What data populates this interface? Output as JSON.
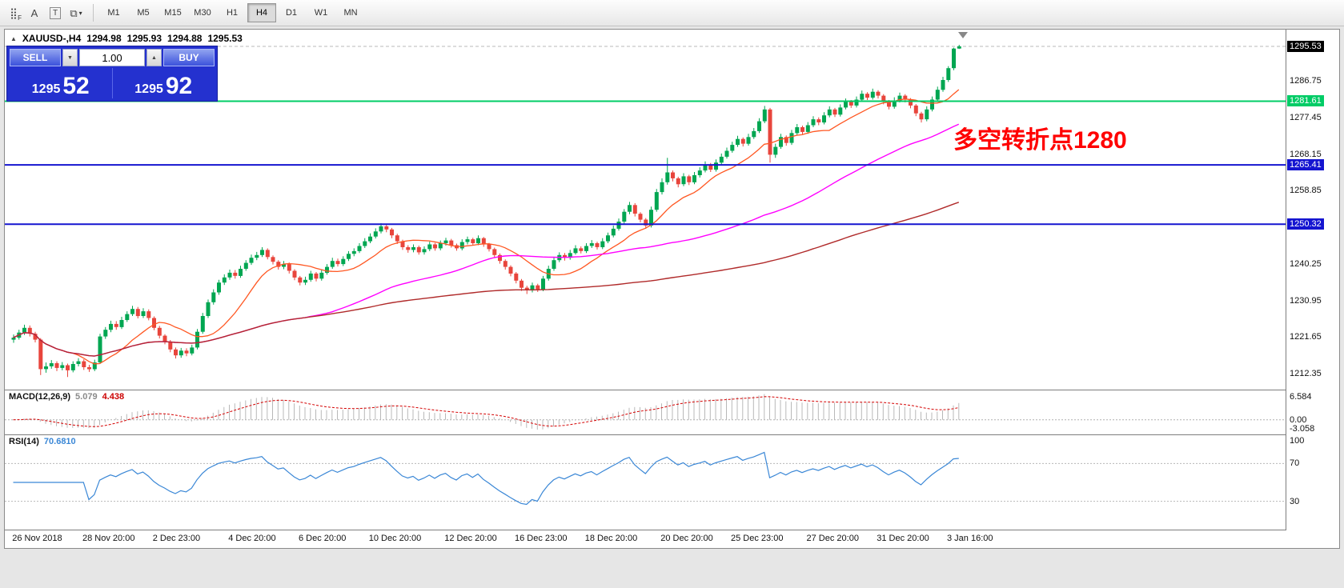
{
  "toolbar": {
    "tools": [
      {
        "name": "indicator-grid-icon",
        "glyph": "⣿",
        "sub": "F"
      },
      {
        "name": "cursor-tool-button",
        "glyph": "A"
      },
      {
        "name": "text-tool-button",
        "glyph": "T",
        "boxed": true
      },
      {
        "name": "shapes-tool-button",
        "glyph": "⧉",
        "caret": "▾"
      }
    ],
    "timeframes": [
      "M1",
      "M5",
      "M15",
      "M30",
      "H1",
      "H4",
      "D1",
      "W1",
      "MN"
    ],
    "active_timeframe": "H4"
  },
  "chart_header": {
    "symbol": "XAUUSD-,H4",
    "open": "1294.98",
    "high": "1295.93",
    "low": "1294.88",
    "close": "1295.53"
  },
  "trade_panel": {
    "sell_label": "SELL",
    "buy_label": "BUY",
    "volume": "1.00",
    "sell_price_base": "1295",
    "sell_price_pips": "52",
    "buy_price_base": "1295",
    "buy_price_pips": "92",
    "decrease_glyph": "▼",
    "increase_glyph": "▲"
  },
  "y_axis": {
    "ticks": [
      1286.75,
      1277.45,
      1268.15,
      1258.85,
      1240.25,
      1230.95,
      1221.65,
      1212.35
    ],
    "current_price": 1295.53
  },
  "chart_data": {
    "type": "candlestick",
    "symbol": "XAUUSD-",
    "timeframe": "H4",
    "title": "XAUUSD-,H4",
    "up_color": "#00a651",
    "down_color": "#e8453c",
    "y_range": [
      1208.3,
      1299.8
    ],
    "current_price": 1295.53,
    "annotation": {
      "text": "多空转折点1280",
      "color": "#ff0000"
    },
    "hlines": [
      {
        "price": 1281.61,
        "color": "#00cc66",
        "label": "1281.61"
      },
      {
        "price": 1265.41,
        "color": "#1515d0",
        "label": "1265.41"
      },
      {
        "price": 1250.32,
        "color": "#1515d0",
        "label": "1250.32"
      }
    ],
    "overlays": [
      {
        "name": "ma-fast",
        "type": "sma",
        "period": 12,
        "color": "#ff5722",
        "width": 1.3
      },
      {
        "name": "ma-mid",
        "type": "sma",
        "period": 55,
        "color": "#ff00ff",
        "width": 1.4
      },
      {
        "name": "ma-slow",
        "type": "sma",
        "period": 140,
        "color": "#b02a2a",
        "width": 1.4
      }
    ],
    "x_labels": [
      {
        "label": "26 Nov 2018",
        "index": 1
      },
      {
        "label": "28 Nov 20:00",
        "index": 14
      },
      {
        "label": "2 Dec 23:00",
        "index": 27
      },
      {
        "label": "4 Dec 20:00",
        "index": 41
      },
      {
        "label": "6 Dec 20:00",
        "index": 54
      },
      {
        "label": "10 Dec 20:00",
        "index": 67
      },
      {
        "label": "12 Dec 20:00",
        "index": 81
      },
      {
        "label": "16 Dec 23:00",
        "index": 94
      },
      {
        "label": "18 Dec 20:00",
        "index": 107
      },
      {
        "label": "20 Dec 20:00",
        "index": 121
      },
      {
        "label": "25 Dec 23:00",
        "index": 134
      },
      {
        "label": "27 Dec 20:00",
        "index": 148
      },
      {
        "label": "31 Dec 20:00",
        "index": 161
      },
      {
        "label": "3 Jan 16:00",
        "index": 174
      }
    ],
    "indicators": [
      {
        "name": "MACD",
        "label": "MACD(12,26,9)",
        "values": [
          "5.079",
          "4.438"
        ],
        "params": [
          12,
          26,
          9
        ],
        "scale": [
          "6.584",
          "0.00",
          "-3.058"
        ],
        "range": [
          -3.6,
          7.2
        ],
        "histogram_color": "#b8b8b8",
        "signal_color": "#d40000"
      },
      {
        "name": "RSI",
        "label": "RSI(14)",
        "value": "70.6810",
        "period": 14,
        "scale": [
          "100",
          "70",
          "30"
        ],
        "range": [
          0,
          100
        ],
        "levels": [
          70,
          30
        ],
        "line_color": "#3a87d6"
      }
    ],
    "candles": [
      [
        1221.0,
        1222.3,
        1220.2,
        1221.5
      ],
      [
        1221.5,
        1223.5,
        1221.0,
        1222.8
      ],
      [
        1222.8,
        1224.8,
        1222.2,
        1224.0
      ],
      [
        1224.0,
        1224.6,
        1221.8,
        1222.5
      ],
      [
        1222.5,
        1223.0,
        1220.3,
        1221.0
      ],
      [
        1221.0,
        1221.4,
        1212.0,
        1213.5
      ],
      [
        1213.5,
        1215.2,
        1212.6,
        1214.2
      ],
      [
        1214.2,
        1215.8,
        1213.6,
        1215.0
      ],
      [
        1215.0,
        1215.5,
        1213.0,
        1213.8
      ],
      [
        1213.8,
        1215.3,
        1213.2,
        1214.5
      ],
      [
        1214.5,
        1214.9,
        1211.5,
        1213.2
      ],
      [
        1213.2,
        1215.5,
        1212.7,
        1214.8
      ],
      [
        1214.8,
        1216.3,
        1214.2,
        1215.5
      ],
      [
        1215.5,
        1216.0,
        1213.3,
        1214.0
      ],
      [
        1214.0,
        1214.6,
        1212.8,
        1213.5
      ],
      [
        1213.5,
        1215.9,
        1213.0,
        1215.2
      ],
      [
        1215.2,
        1222.5,
        1214.8,
        1221.8
      ],
      [
        1221.8,
        1224.2,
        1221.2,
        1223.5
      ],
      [
        1223.5,
        1225.8,
        1222.9,
        1225.0
      ],
      [
        1225.0,
        1225.7,
        1223.5,
        1224.2
      ],
      [
        1224.2,
        1226.8,
        1223.7,
        1226.0
      ],
      [
        1226.0,
        1228.2,
        1225.5,
        1227.5
      ],
      [
        1227.5,
        1229.6,
        1227.0,
        1228.8
      ],
      [
        1228.8,
        1229.3,
        1226.4,
        1227.0
      ],
      [
        1227.0,
        1229.0,
        1226.5,
        1228.2
      ],
      [
        1228.2,
        1228.7,
        1225.9,
        1226.5
      ],
      [
        1226.5,
        1226.9,
        1223.4,
        1224.0
      ],
      [
        1224.0,
        1224.5,
        1221.3,
        1222.0
      ],
      [
        1222.0,
        1222.4,
        1219.8,
        1220.5
      ],
      [
        1220.5,
        1220.9,
        1217.8,
        1218.5
      ],
      [
        1218.5,
        1219.0,
        1216.2,
        1217.0
      ],
      [
        1217.0,
        1218.9,
        1216.4,
        1218.2
      ],
      [
        1218.2,
        1218.8,
        1216.8,
        1217.5
      ],
      [
        1217.5,
        1219.7,
        1217.0,
        1219.0
      ],
      [
        1219.0,
        1223.7,
        1218.5,
        1223.0
      ],
      [
        1223.0,
        1227.8,
        1222.5,
        1227.0
      ],
      [
        1227.0,
        1231.2,
        1226.5,
        1230.5
      ],
      [
        1230.5,
        1233.8,
        1229.9,
        1233.0
      ],
      [
        1233.0,
        1236.2,
        1232.4,
        1235.5
      ],
      [
        1235.5,
        1237.6,
        1234.9,
        1236.8
      ],
      [
        1236.8,
        1238.8,
        1236.2,
        1238.0
      ],
      [
        1238.0,
        1238.7,
        1236.5,
        1237.2
      ],
      [
        1237.2,
        1239.8,
        1236.7,
        1239.0
      ],
      [
        1239.0,
        1241.2,
        1238.5,
        1240.5
      ],
      [
        1240.5,
        1242.6,
        1240.0,
        1241.8
      ],
      [
        1241.8,
        1243.3,
        1241.2,
        1242.5
      ],
      [
        1242.5,
        1244.5,
        1242.0,
        1243.8
      ],
      [
        1243.8,
        1244.2,
        1241.4,
        1242.0
      ],
      [
        1242.0,
        1242.4,
        1240.1,
        1240.8
      ],
      [
        1240.8,
        1241.2,
        1238.8,
        1239.5
      ],
      [
        1239.5,
        1241.0,
        1238.9,
        1240.2
      ],
      [
        1240.2,
        1240.6,
        1237.8,
        1238.5
      ],
      [
        1238.5,
        1238.9,
        1236.1,
        1236.8
      ],
      [
        1236.8,
        1237.2,
        1234.8,
        1235.5
      ],
      [
        1235.5,
        1237.0,
        1234.9,
        1236.2
      ],
      [
        1236.2,
        1238.5,
        1235.7,
        1237.8
      ],
      [
        1237.8,
        1238.2,
        1235.8,
        1236.5
      ],
      [
        1236.5,
        1238.8,
        1236.0,
        1238.0
      ],
      [
        1238.0,
        1240.2,
        1237.5,
        1239.5
      ],
      [
        1239.5,
        1241.8,
        1239.0,
        1241.0
      ],
      [
        1241.0,
        1241.6,
        1239.6,
        1240.2
      ],
      [
        1240.2,
        1242.2,
        1239.7,
        1241.5
      ],
      [
        1241.5,
        1243.5,
        1241.0,
        1242.8
      ],
      [
        1242.8,
        1244.2,
        1242.2,
        1243.5
      ],
      [
        1243.5,
        1245.5,
        1243.0,
        1244.8
      ],
      [
        1244.8,
        1246.8,
        1244.3,
        1246.0
      ],
      [
        1246.0,
        1248.0,
        1245.5,
        1247.2
      ],
      [
        1247.2,
        1249.3,
        1246.7,
        1248.5
      ],
      [
        1248.5,
        1250.6,
        1248.0,
        1249.8
      ],
      [
        1249.8,
        1250.4,
        1248.3,
        1249.0
      ],
      [
        1249.0,
        1249.4,
        1246.8,
        1247.5
      ],
      [
        1247.5,
        1247.9,
        1245.3,
        1246.0
      ],
      [
        1246.0,
        1246.4,
        1243.8,
        1244.5
      ],
      [
        1244.5,
        1245.0,
        1243.1,
        1243.8
      ],
      [
        1243.8,
        1245.2,
        1243.2,
        1244.5
      ],
      [
        1244.5,
        1244.9,
        1242.6,
        1243.2
      ],
      [
        1243.2,
        1244.7,
        1242.6,
        1244.0
      ],
      [
        1244.0,
        1245.9,
        1243.5,
        1245.2
      ],
      [
        1245.2,
        1245.6,
        1243.6,
        1244.2
      ],
      [
        1244.2,
        1246.2,
        1243.7,
        1245.5
      ],
      [
        1245.5,
        1246.9,
        1244.9,
        1246.2
      ],
      [
        1246.2,
        1246.6,
        1244.4,
        1245.0
      ],
      [
        1245.0,
        1245.4,
        1243.6,
        1244.2
      ],
      [
        1244.2,
        1246.5,
        1243.7,
        1245.8
      ],
      [
        1245.8,
        1247.2,
        1245.2,
        1246.5
      ],
      [
        1246.5,
        1246.9,
        1244.9,
        1245.5
      ],
      [
        1245.5,
        1247.5,
        1245.0,
        1246.8
      ],
      [
        1246.8,
        1247.1,
        1244.6,
        1245.2
      ],
      [
        1245.2,
        1245.6,
        1243.4,
        1244.0
      ],
      [
        1244.0,
        1244.4,
        1241.8,
        1242.5
      ],
      [
        1242.5,
        1242.9,
        1240.3,
        1241.0
      ],
      [
        1241.0,
        1241.4,
        1238.8,
        1239.5
      ],
      [
        1239.5,
        1239.9,
        1237.1,
        1237.8
      ],
      [
        1237.8,
        1238.2,
        1235.3,
        1236.0
      ],
      [
        1236.0,
        1236.4,
        1233.4,
        1234.2
      ],
      [
        1234.2,
        1234.7,
        1232.6,
        1233.5
      ],
      [
        1233.5,
        1235.5,
        1233.0,
        1234.8
      ],
      [
        1234.8,
        1235.2,
        1233.1,
        1233.8
      ],
      [
        1233.8,
        1237.2,
        1233.3,
        1236.5
      ],
      [
        1236.5,
        1239.8,
        1236.0,
        1239.0
      ],
      [
        1239.0,
        1242.0,
        1238.5,
        1241.2
      ],
      [
        1241.2,
        1243.2,
        1240.7,
        1242.5
      ],
      [
        1242.5,
        1243.0,
        1241.1,
        1241.8
      ],
      [
        1241.8,
        1243.8,
        1241.3,
        1243.0
      ],
      [
        1243.0,
        1245.0,
        1242.6,
        1244.2
      ],
      [
        1244.2,
        1244.7,
        1242.9,
        1243.5
      ],
      [
        1243.5,
        1245.5,
        1243.0,
        1244.8
      ],
      [
        1244.8,
        1246.3,
        1244.3,
        1245.5
      ],
      [
        1245.5,
        1245.9,
        1243.9,
        1244.5
      ],
      [
        1244.5,
        1246.8,
        1244.0,
        1246.0
      ],
      [
        1246.0,
        1248.2,
        1245.5,
        1247.5
      ],
      [
        1247.5,
        1250.0,
        1247.0,
        1249.2
      ],
      [
        1249.2,
        1251.8,
        1248.7,
        1251.0
      ],
      [
        1251.0,
        1254.2,
        1250.5,
        1253.5
      ],
      [
        1253.5,
        1256.0,
        1252.9,
        1255.2
      ],
      [
        1255.2,
        1255.7,
        1252.3,
        1253.0
      ],
      [
        1253.0,
        1253.4,
        1250.8,
        1251.5
      ],
      [
        1251.5,
        1251.9,
        1249.2,
        1250.0
      ],
      [
        1250.0,
        1254.8,
        1249.5,
        1254.0
      ],
      [
        1254.0,
        1259.3,
        1253.5,
        1258.5
      ],
      [
        1258.5,
        1262.0,
        1257.9,
        1261.0
      ],
      [
        1261.0,
        1267.2,
        1260.4,
        1263.5
      ],
      [
        1263.5,
        1264.0,
        1261.2,
        1262.0
      ],
      [
        1262.0,
        1262.4,
        1259.7,
        1260.5
      ],
      [
        1260.5,
        1263.3,
        1260.0,
        1262.5
      ],
      [
        1262.5,
        1262.9,
        1260.3,
        1261.0
      ],
      [
        1261.0,
        1263.6,
        1260.5,
        1262.8
      ],
      [
        1262.8,
        1264.8,
        1262.2,
        1264.0
      ],
      [
        1264.0,
        1266.3,
        1263.5,
        1265.5
      ],
      [
        1265.5,
        1265.9,
        1263.6,
        1264.2
      ],
      [
        1264.2,
        1266.8,
        1263.7,
        1266.0
      ],
      [
        1266.0,
        1268.3,
        1265.5,
        1267.5
      ],
      [
        1267.5,
        1269.8,
        1267.0,
        1269.0
      ],
      [
        1269.0,
        1271.3,
        1268.5,
        1270.5
      ],
      [
        1270.5,
        1272.8,
        1270.0,
        1272.0
      ],
      [
        1272.0,
        1272.4,
        1270.1,
        1270.8
      ],
      [
        1270.8,
        1273.3,
        1270.3,
        1272.5
      ],
      [
        1272.5,
        1274.8,
        1272.0,
        1274.0
      ],
      [
        1274.0,
        1277.3,
        1273.5,
        1276.5
      ],
      [
        1276.5,
        1280.4,
        1276.0,
        1279.5
      ],
      [
        1279.5,
        1279.9,
        1266.0,
        1268.0
      ],
      [
        1268.0,
        1270.8,
        1267.2,
        1270.0
      ],
      [
        1270.0,
        1273.3,
        1269.5,
        1272.5
      ],
      [
        1272.5,
        1272.9,
        1270.3,
        1271.0
      ],
      [
        1271.0,
        1274.3,
        1270.5,
        1273.5
      ],
      [
        1273.5,
        1275.8,
        1273.0,
        1275.0
      ],
      [
        1275.0,
        1275.4,
        1273.1,
        1273.8
      ],
      [
        1273.8,
        1276.3,
        1273.3,
        1275.5
      ],
      [
        1275.5,
        1277.8,
        1275.0,
        1277.0
      ],
      [
        1277.0,
        1277.5,
        1275.5,
        1276.2
      ],
      [
        1276.2,
        1278.8,
        1275.7,
        1278.0
      ],
      [
        1278.0,
        1280.3,
        1277.5,
        1279.5
      ],
      [
        1279.5,
        1279.9,
        1277.6,
        1278.2
      ],
      [
        1278.2,
        1280.8,
        1277.7,
        1280.0
      ],
      [
        1280.0,
        1282.3,
        1279.5,
        1281.5
      ],
      [
        1281.5,
        1281.9,
        1279.9,
        1280.5
      ],
      [
        1280.5,
        1282.8,
        1280.0,
        1282.0
      ],
      [
        1282.0,
        1284.3,
        1281.5,
        1283.5
      ],
      [
        1283.5,
        1283.9,
        1281.9,
        1282.5
      ],
      [
        1282.5,
        1284.8,
        1282.0,
        1284.0
      ],
      [
        1284.0,
        1284.4,
        1282.3,
        1283.0
      ],
      [
        1283.0,
        1283.4,
        1280.8,
        1281.5
      ],
      [
        1281.5,
        1281.9,
        1279.5,
        1280.2
      ],
      [
        1280.2,
        1282.6,
        1279.7,
        1281.8
      ],
      [
        1281.8,
        1283.8,
        1281.3,
        1283.0
      ],
      [
        1283.0,
        1283.4,
        1281.3,
        1282.0
      ],
      [
        1282.0,
        1282.4,
        1279.8,
        1280.5
      ],
      [
        1280.5,
        1280.9,
        1277.8,
        1278.5
      ],
      [
        1278.5,
        1278.9,
        1276.2,
        1277.0
      ],
      [
        1277.0,
        1280.3,
        1276.5,
        1279.5
      ],
      [
        1279.5,
        1282.8,
        1279.0,
        1282.0
      ],
      [
        1282.0,
        1285.3,
        1281.5,
        1284.5
      ],
      [
        1284.5,
        1287.8,
        1284.0,
        1287.0
      ],
      [
        1287.0,
        1290.5,
        1286.5,
        1290.0
      ],
      [
        1290.0,
        1295.2,
        1289.5,
        1294.98
      ],
      [
        1294.98,
        1295.93,
        1294.88,
        1295.53
      ]
    ]
  }
}
